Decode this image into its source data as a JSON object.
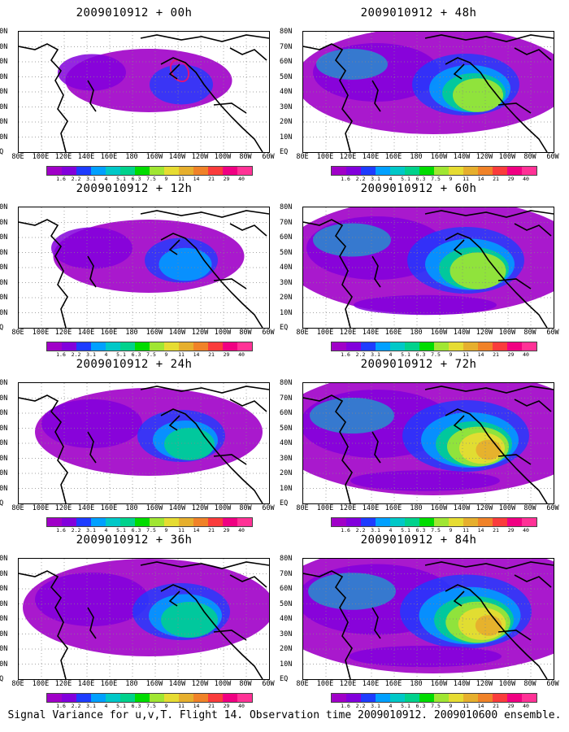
{
  "panels": [
    {
      "title": "2009010912 + 00h"
    },
    {
      "title": "2009010912 + 48h"
    },
    {
      "title": "2009010912 + 12h"
    },
    {
      "title": "2009010912 + 60h"
    },
    {
      "title": "2009010912 + 24h"
    },
    {
      "title": "2009010912 + 72h"
    },
    {
      "title": "2009010912 + 36h"
    },
    {
      "title": "2009010912 + 84h"
    }
  ],
  "lat_labels": [
    "80N",
    "70N",
    "60N",
    "50N",
    "40N",
    "30N",
    "20N",
    "10N",
    "EQ"
  ],
  "lon_labels": [
    "80E",
    "100E",
    "120E",
    "140E",
    "160E",
    "180",
    "160W",
    "140W",
    "120W",
    "100W",
    "80W",
    "60W"
  ],
  "colorbar": {
    "values": [
      "1.6",
      "2.2",
      "3.1",
      "4",
      "5.1",
      "6.3",
      "7.5",
      "9",
      "11",
      "14",
      "21",
      "29",
      "40"
    ],
    "colors": [
      "#a000c8",
      "#8200dc",
      "#1e3cff",
      "#00a0ff",
      "#00c8c8",
      "#00d28c",
      "#00dc00",
      "#a0e632",
      "#e6dc32",
      "#e6af2d",
      "#f08228",
      "#fa3c3c",
      "#f00082"
    ]
  },
  "caption": "Signal Variance for u,v,T. Flight 14. Observation time 2009010912. 2009010600 ensemble."
}
